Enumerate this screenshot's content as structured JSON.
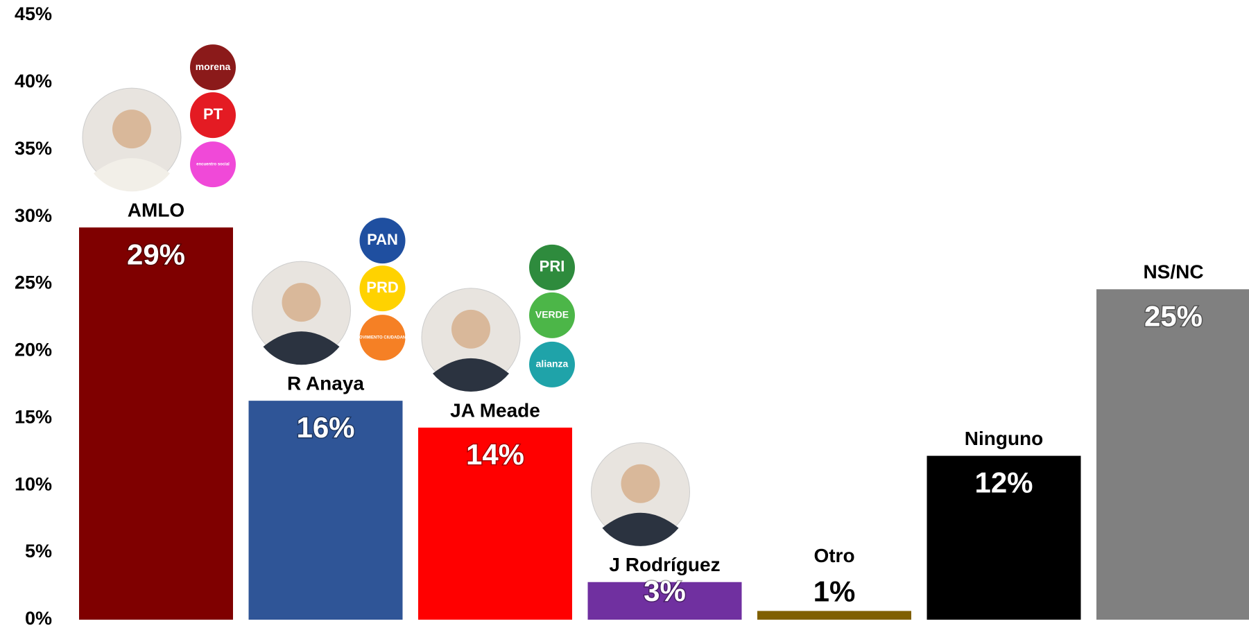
{
  "chart_data": {
    "type": "bar",
    "categories": [
      "AMLO",
      "R Anaya",
      "JA Meade",
      "J Rodríguez",
      "Otro",
      "Ninguno",
      "NS/NC"
    ],
    "values": [
      29.2,
      16.3,
      14.3,
      2.8,
      0.65,
      12.2,
      24.6
    ],
    "value_labels": [
      "29%",
      "16%",
      "14%",
      "3%",
      "1%",
      "12%",
      "25%"
    ],
    "colors": [
      "#7f0000",
      "#2f5597",
      "#ff0000",
      "#7030a0",
      "#806000",
      "#000000",
      "#808080"
    ],
    "ylim": [
      0,
      45
    ],
    "yticks": [
      {
        "value": 0,
        "label": "0%"
      },
      {
        "value": 5,
        "label": "5%"
      },
      {
        "value": 10,
        "label": "10%"
      },
      {
        "value": 15,
        "label": "15%"
      },
      {
        "value": 20,
        "label": "20%"
      },
      {
        "value": 25,
        "label": "25%"
      },
      {
        "value": 30,
        "label": "30%"
      },
      {
        "value": 35,
        "label": "35%"
      },
      {
        "value": 40,
        "label": "40%"
      },
      {
        "value": 45,
        "label": "45%"
      }
    ],
    "grid": false,
    "party_logos": [
      [
        {
          "text": "morena",
          "color": "#8b1a1a"
        },
        {
          "text": "PT",
          "color": "#e41b23"
        },
        {
          "text": "encuentro social",
          "color": "#f049d8"
        }
      ],
      [
        {
          "text": "PAN",
          "color": "#1f4fa0"
        },
        {
          "text": "PRD",
          "color": "#ffd200"
        },
        {
          "text": "MOVIMIENTO CIUDADANO",
          "color": "#f58025"
        }
      ],
      [
        {
          "text": "PRI",
          "color": "#2e8b3d"
        },
        {
          "text": "VERDE",
          "color": "#4cb648"
        },
        {
          "text": "alianza",
          "color": "#1fa3a9"
        }
      ],
      [],
      [],
      [],
      []
    ]
  }
}
